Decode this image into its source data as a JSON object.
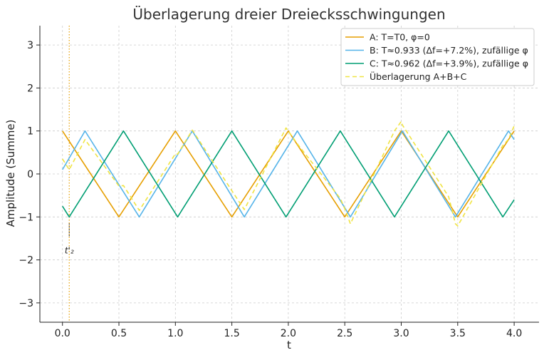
{
  "chart_data": {
    "type": "line",
    "title": "Überlagerung dreier Dreiecksschwingungen",
    "xlabel": "t",
    "ylabel": "Amplitude (Summe)",
    "xlim": [
      -0.2,
      4.22
    ],
    "ylim": [
      -3.45,
      3.45
    ],
    "xticks": [
      0.0,
      0.5,
      1.0,
      1.5,
      2.0,
      2.5,
      3.0,
      3.5,
      4.0
    ],
    "xtick_labels": [
      "0.0",
      "0.5",
      "1.0",
      "1.5",
      "2.0",
      "2.5",
      "3.0",
      "3.5",
      "4.0"
    ],
    "yticks": [
      -3,
      -2,
      -1,
      0,
      1,
      2,
      3
    ],
    "ytick_labels": [
      "−3",
      "−2",
      "−1",
      "0",
      "1",
      "2",
      "3"
    ],
    "grid": true,
    "legend_position": "top-right",
    "series": [
      {
        "name": "A: T=T0, φ=0",
        "color": "#E69F00",
        "style": "solid",
        "x": [
          0.0,
          0.5,
          1.0,
          1.5,
          2.0,
          2.5,
          3.0,
          3.5,
          4.0
        ],
        "y": [
          1,
          -1,
          1,
          -1,
          1,
          -1,
          1,
          -1,
          1
        ]
      },
      {
        "name": "B: T≈0.933 (Δf=+7.2%), zufällige φ",
        "color": "#56B4E9",
        "style": "solid",
        "x": [
          0.0,
          0.2,
          0.68,
          1.15,
          1.61,
          2.08,
          2.55,
          3.01,
          3.48,
          3.95,
          4.0
        ],
        "y": [
          0.1,
          1,
          -1,
          1,
          -1,
          1,
          -1,
          1,
          -1,
          1,
          0.8
        ]
      },
      {
        "name": "C: T≈0.962 (Δf=+3.9%), zufällige φ",
        "color": "#009E73",
        "style": "solid",
        "x": [
          0.0,
          0.06,
          0.54,
          1.02,
          1.5,
          1.98,
          2.46,
          2.94,
          3.42,
          3.9,
          4.0
        ],
        "y": [
          -0.75,
          -1,
          1,
          -1,
          1,
          -1,
          1,
          -1,
          1,
          -1,
          -0.6
        ]
      },
      {
        "name": "Überlagerung A+B+C",
        "color": "#F0E442",
        "style": "dashed",
        "x": [
          0.0,
          0.06,
          0.2,
          0.5,
          0.54,
          0.68,
          1.0,
          1.02,
          1.15,
          1.5,
          1.61,
          1.98,
          2.08,
          2.46,
          2.5,
          2.55,
          2.94,
          3.0,
          3.01,
          3.42,
          3.48,
          3.5,
          3.9,
          3.95,
          4.0
        ],
        "y": [
          0.35,
          0.1,
          0.8,
          -0.28,
          -0.27,
          -0.85,
          0.47,
          0.46,
          1.02,
          -0.39,
          -0.83,
          1.07,
          0.7,
          -0.57,
          -0.81,
          -1.16,
          1.0,
          1.22,
          1.14,
          -0.53,
          -1.16,
          -1.21,
          0.66,
          0.81,
          1.12
        ]
      }
    ],
    "annotations": [
      {
        "kind": "vline",
        "x": 0.06,
        "color": "#E69F00"
      },
      {
        "kind": "text",
        "text": "t'₂",
        "x": 0.06,
        "y": -1.85
      }
    ]
  }
}
